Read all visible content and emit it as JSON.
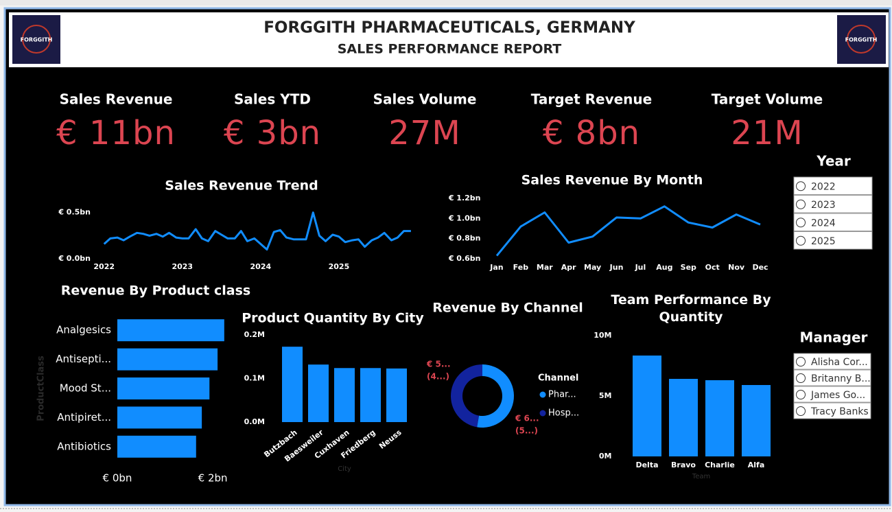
{
  "header": {
    "title": "FORGGITH PHARMACEUTICALS, GERMANY",
    "subtitle": "SALES PERFORMANCE REPORT",
    "logo_text": "FORGGITH"
  },
  "kpis": [
    {
      "label": "Sales Revenue",
      "value": "€ 11bn"
    },
    {
      "label": "Sales YTD",
      "value": "€ 3bn"
    },
    {
      "label": "Sales Volume",
      "value": "27M"
    },
    {
      "label": "Target Revenue",
      "value": "€ 8bn"
    },
    {
      "label": "Target Volume",
      "value": "21M"
    }
  ],
  "slicers": [
    {
      "title": "Year",
      "options": [
        "2022",
        "2023",
        "2024",
        "2025"
      ]
    },
    {
      "title": "Manager",
      "options": [
        "Alisha Cor...",
        "Britanny B...",
        "James Go...",
        "Tracy Banks"
      ]
    }
  ],
  "chart_data": [
    {
      "type": "line",
      "title": "Sales Revenue Trend",
      "color": "#118DFF",
      "x": [
        2022,
        2022.08,
        2022.17,
        2022.25,
        2022.33,
        2022.42,
        2022.5,
        2022.58,
        2022.67,
        2022.75,
        2022.83,
        2022.92,
        2023,
        2023.08,
        2023.17,
        2023.25,
        2023.33,
        2023.42,
        2023.5,
        2023.58,
        2023.67,
        2023.75,
        2023.83,
        2023.92,
        2024,
        2024.08,
        2024.17,
        2024.25,
        2024.33,
        2024.42,
        2024.5,
        2024.58,
        2024.67,
        2024.75,
        2024.83,
        2024.92,
        2025,
        2025.08,
        2025.17,
        2025.25,
        2025.33,
        2025.42,
        2025.5,
        2025.58,
        2025.67,
        2025.75,
        2025.83,
        2025.92
      ],
      "values": [
        0.16,
        0.22,
        0.23,
        0.2,
        0.24,
        0.28,
        0.27,
        0.25,
        0.27,
        0.24,
        0.28,
        0.23,
        0.22,
        0.22,
        0.32,
        0.22,
        0.19,
        0.3,
        0.26,
        0.22,
        0.22,
        0.3,
        0.19,
        0.22,
        0.16,
        0.1,
        0.29,
        0.31,
        0.23,
        0.21,
        0.21,
        0.21,
        0.5,
        0.25,
        0.19,
        0.26,
        0.24,
        0.18,
        0.2,
        0.21,
        0.13,
        0.2,
        0.23,
        0.28,
        0.2,
        0.23,
        0.3,
        0.3
      ],
      "xlim": [
        2021.95,
        2026
      ],
      "xticks": [
        2022,
        2023,
        2024,
        2025
      ],
      "ylim": [
        0,
        0.55
      ],
      "yticks": [
        {
          "value": 0,
          "label": "€ 0.0bn"
        },
        {
          "value": 0.5,
          "label": "€ 0.5bn"
        }
      ],
      "grid": false
    },
    {
      "type": "line",
      "title": "Sales Revenue By Month",
      "color": "#118DFF",
      "categories": [
        "Jan",
        "Feb",
        "Mar",
        "Apr",
        "May",
        "Jun",
        "Jul",
        "Aug",
        "Sep",
        "Oct",
        "Nov",
        "Dec"
      ],
      "values": [
        0.63,
        0.92,
        1.06,
        0.76,
        0.82,
        1.01,
        1.0,
        1.12,
        0.96,
        0.91,
        1.04,
        0.94
      ],
      "ylim": [
        0.6,
        1.2
      ],
      "yticks": [
        {
          "value": 0.6,
          "label": "€ 0.6bn"
        },
        {
          "value": 0.8,
          "label": "€ 0.8bn"
        },
        {
          "value": 1.0,
          "label": "€ 1.0bn"
        },
        {
          "value": 1.2,
          "label": "€ 1.2bn"
        }
      ],
      "grid": false
    },
    {
      "type": "bar",
      "horizontal": true,
      "title": "Revenue By Product class",
      "y_label": "ProductClass",
      "color": "#118DFF",
      "categories": [
        "Analgesics",
        "Antisepti...",
        "Mood St...",
        "Antipiret...",
        "Antibiotics"
      ],
      "values": [
        2.24,
        2.1,
        1.93,
        1.77,
        1.65
      ],
      "xlim": [
        0,
        2.3
      ],
      "xticks": [
        {
          "value": 0,
          "label": "€ 0bn"
        },
        {
          "value": 2,
          "label": "€ 2bn"
        }
      ],
      "grid": false
    },
    {
      "type": "bar",
      "title": "Product Quantity By City",
      "x_label": "City",
      "color": "#118DFF",
      "categories": [
        "Butzbach",
        "Baesweiler",
        "Cuxhaven",
        "Friedberg",
        "Neuss"
      ],
      "values": [
        173000,
        132000,
        124000,
        124000,
        123000
      ],
      "ylim": [
        0,
        200000
      ],
      "yticks": [
        {
          "value": 0,
          "label": "0.0M"
        },
        {
          "value": 100000,
          "label": "0.1M"
        },
        {
          "value": 200000,
          "label": "0.2M"
        }
      ],
      "grid": false
    },
    {
      "type": "donut",
      "title": "Revenue By Channel",
      "legend_title": "Channel",
      "categories": [
        "Phar...",
        "Hosp..."
      ],
      "colors": [
        "#118DFF",
        "#12239E"
      ],
      "values": [
        5.8,
        5.2
      ],
      "value_labels": [
        "€ 6...",
        "€ 5..."
      ],
      "percent_labels": [
        "(5...)",
        "(4...)"
      ]
    },
    {
      "type": "bar",
      "title": "Team Performance By Quantity",
      "x_label": "Team",
      "color": "#118DFF",
      "categories": [
        "Delta",
        "Bravo",
        "Charlie",
        "Alfa"
      ],
      "values": [
        8350000,
        6420000,
        6310000,
        5910000
      ],
      "ylim": [
        0,
        10000000
      ],
      "yticks": [
        {
          "value": 0,
          "label": "0M"
        },
        {
          "value": 5000000,
          "label": "5M"
        },
        {
          "value": 10000000,
          "label": "10M"
        }
      ],
      "grid": false
    }
  ]
}
